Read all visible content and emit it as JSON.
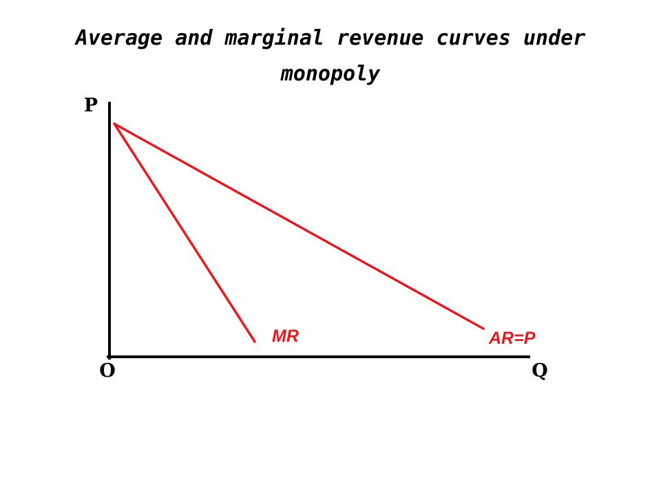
{
  "title": "Average and marginal revenue curves under monopoly",
  "axes": {
    "y_label": "P",
    "x_label": "Q",
    "origin_label": "O"
  },
  "curves": {
    "ar_label": "AR=P",
    "mr_label": "MR"
  },
  "colors": {
    "axis": "#000000",
    "curve": "#e8191e",
    "text": "#000000"
  }
}
